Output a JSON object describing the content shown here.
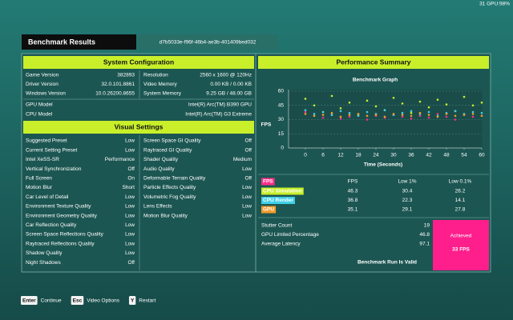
{
  "status": "31 GPU:98%",
  "header": {
    "title": "Benchmark Results",
    "run_id": "d7b5033e-f96f-46b4-ae3b-401409bed032"
  },
  "system_configuration": {
    "title": "System Configuration",
    "left": [
      [
        "Game Version",
        "382893"
      ],
      [
        "Driver Version",
        "32.0.101.8861"
      ],
      [
        "Windows Version",
        "10.0.26200.8655"
      ]
    ],
    "right": [
      [
        "Resolution",
        "2560 x 1600 @ 120Hz"
      ],
      [
        "Video Memory",
        "0.00 KB / 0.00 KB"
      ],
      [
        "System Memory",
        "9.25 GB / 48.00 GB"
      ]
    ],
    "hardware": [
      [
        "GPU Model",
        "Intel(R) Arc(TM) B390 GPU"
      ],
      [
        "CPU Model",
        "Intel(R) Arc(TM) G3 Extreme"
      ]
    ]
  },
  "visual_settings": {
    "title": "Visual Settings",
    "left": [
      [
        "Suggested Preset",
        "Low"
      ],
      [
        "Current Setting Preset",
        "Low"
      ],
      [
        "Intel XeSS-SR",
        "Performance"
      ],
      [
        "Vertical Synchronization",
        "Off"
      ],
      [
        "Full Screen",
        "On"
      ],
      [
        "Motion Blur",
        "Short"
      ],
      [
        "Car Level of Detail",
        "Low"
      ],
      [
        "Environment Texture Quality",
        "Low"
      ],
      [
        "Environment Geometry Quality",
        "Low"
      ],
      [
        "Car Reflection Quality",
        "Low"
      ],
      [
        "Screen Space Reflections Quality",
        "Low"
      ],
      [
        "Raytraced Reflections Quality",
        "Low"
      ],
      [
        "Shadow Quality",
        "Low"
      ],
      [
        "Night Shadows",
        "Off"
      ]
    ],
    "right": [
      [
        "Screen Space GI Quality",
        "Off"
      ],
      [
        "Raytraced GI Quality",
        "Off"
      ],
      [
        "Shader Quality",
        "Medium"
      ],
      [
        "Audio Quality",
        "Low"
      ],
      [
        "Deformable Terrain Quality",
        "Off"
      ],
      [
        "Particle Effects Quality",
        "Low"
      ],
      [
        "Volumetric Fog Quality",
        "Low"
      ],
      [
        "Lens Effects",
        "Low"
      ],
      [
        "Motion Blur Quality",
        "Low"
      ]
    ]
  },
  "performance_summary": {
    "title": "Performance Summary",
    "table": {
      "columns": [
        "FPS",
        "Low 1%",
        "Low 0.1%"
      ],
      "rows": [
        [
          46.3,
          30.4,
          26.2
        ],
        [
          36.8,
          22.3,
          14.1
        ],
        [
          35.1,
          29.1,
          27.8
        ]
      ]
    },
    "stats": [
      [
        "Stutter Count",
        19
      ],
      [
        "GPU Limited Percentage",
        46.8
      ],
      [
        "Average Latency",
        97.1
      ]
    ],
    "validity": "Benchmark Run Is Valid",
    "achieved_label": "Achieved",
    "achieved_value": "33 FPS"
  },
  "footer": {
    "buttons": [
      {
        "key": "Enter",
        "label": "Continue"
      },
      {
        "key": "Esc",
        "label": "Video Options"
      },
      {
        "key": "Y",
        "label": "Restart"
      }
    ]
  },
  "chart_data": {
    "type": "scatter",
    "title": "Benchmark Graph",
    "y_label": "FPS",
    "x_label": "Time (Seconds)",
    "x": [
      0,
      3,
      6,
      9,
      12,
      15,
      18,
      21,
      24,
      27,
      30,
      33,
      36,
      39,
      42,
      45,
      48,
      51,
      54,
      57,
      60
    ],
    "series": [
      {
        "name": "FPS",
        "color": "#ff2d8a",
        "values": [
          38,
          34,
          32,
          35,
          31,
          33,
          36,
          30,
          34,
          32,
          35,
          33,
          31,
          34,
          32,
          36,
          33,
          30,
          35,
          33,
          34
        ]
      },
      {
        "name": "CPU Simulation",
        "color": "#c8ef2a",
        "values": [
          52,
          45,
          38,
          55,
          42,
          48,
          35,
          50,
          44,
          40,
          53,
          47,
          37,
          49,
          43,
          51,
          46,
          39,
          54,
          45,
          48
        ]
      },
      {
        "name": "CPU Render",
        "color": "#3fd0e8",
        "values": [
          40,
          36,
          38,
          35,
          39,
          37,
          34,
          38,
          36,
          40,
          35,
          37,
          39,
          36,
          38,
          34,
          37,
          39,
          36,
          38,
          37
        ]
      },
      {
        "name": "GPU",
        "color": "#f39a2a",
        "values": [
          36,
          34,
          35,
          37,
          33,
          35,
          36,
          34,
          35,
          33,
          36,
          35,
          34,
          37,
          35,
          33,
          36,
          34,
          35,
          36,
          34
        ]
      }
    ],
    "xlim": [
      0,
      60
    ],
    "ylim": [
      0,
      60
    ],
    "xticks": [
      0,
      6,
      12,
      18,
      24,
      30,
      36,
      42,
      48,
      54,
      60
    ],
    "yticks": [
      0,
      15,
      30,
      45,
      60
    ],
    "grid": true
  }
}
